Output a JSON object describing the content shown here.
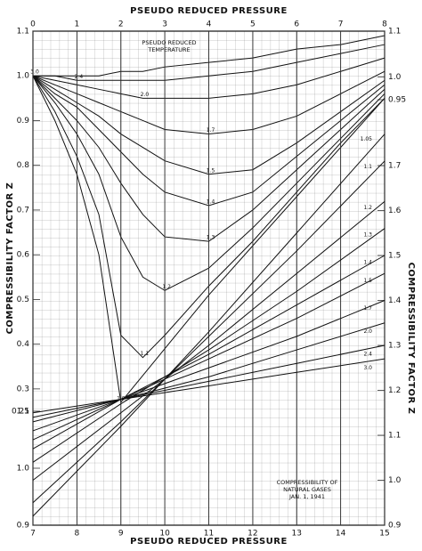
{
  "chart_data": [
    {
      "type": "line",
      "xlabel": "PSEUDO REDUCED PRESSURE",
      "ylabel": "COMPRESSIBILITY FACTOR Z",
      "annotations": [
        "PSEUDO REDUCED",
        "TEMPERATURE"
      ],
      "x": [
        0,
        0.5,
        1,
        1.5,
        2,
        2.5,
        3,
        4,
        5,
        6,
        7,
        8
      ],
      "xlim": [
        0,
        8
      ],
      "xticks": [
        0,
        1,
        2,
        3,
        4,
        5,
        6,
        7,
        8
      ],
      "ylim": [
        0.25,
        1.1
      ],
      "yticks": [
        0.25,
        0.3,
        0.4,
        0.5,
        0.6,
        0.7,
        0.8,
        0.9,
        {
          "value": 1,
          "label": "1.0"
        },
        1.1
      ],
      "y2lim": [
        0.95,
        1.1
      ],
      "y2ticks": [
        0.95,
        {
          "value": 1,
          "label": "1.0"
        },
        1.1
      ],
      "color": "#111111",
      "series": [
        {
          "name": "1.05",
          "values": [
            1,
            0.9,
            0.78,
            0.6,
            0.27,
            0.33,
            0.39,
            0.51,
            0.62,
            0.73,
            0.84,
            0.95
          ]
        },
        {
          "name": "1.1",
          "values": [
            1,
            0.92,
            0.82,
            0.69,
            0.42,
            0.37,
            0.42,
            0.53,
            0.63,
            0.74,
            0.85,
            0.95
          ]
        },
        {
          "name": "1.2",
          "values": [
            1,
            0.94,
            0.87,
            0.78,
            0.64,
            0.55,
            0.52,
            0.57,
            0.66,
            0.76,
            0.86,
            0.96
          ]
        },
        {
          "name": "1.3",
          "values": [
            1,
            0.95,
            0.9,
            0.84,
            0.76,
            0.69,
            0.64,
            0.63,
            0.7,
            0.79,
            0.88,
            0.97
          ]
        },
        {
          "name": "1.4",
          "values": [
            1,
            0.96,
            0.93,
            0.88,
            0.83,
            0.78,
            0.74,
            0.71,
            0.74,
            0.82,
            0.9,
            0.98
          ]
        },
        {
          "name": "1.5",
          "values": [
            1,
            0.97,
            0.94,
            0.91,
            0.87,
            0.84,
            0.81,
            0.78,
            0.79,
            0.85,
            0.92,
            0.99
          ]
        },
        {
          "name": "1.7",
          "values": [
            1,
            0.98,
            0.96,
            0.94,
            0.92,
            0.9,
            0.88,
            0.87,
            0.88,
            0.91,
            0.96,
            1.01
          ]
        },
        {
          "name": "2.0",
          "values": [
            1,
            0.99,
            0.98,
            0.97,
            0.96,
            0.95,
            0.95,
            0.95,
            0.96,
            0.98,
            1.01,
            1.04
          ]
        },
        {
          "name": "2.4",
          "values": [
            1,
            1,
            0.99,
            0.99,
            0.99,
            0.99,
            0.99,
            1,
            1.01,
            1.03,
            1.05,
            1.07
          ]
        },
        {
          "name": "3.0",
          "values": [
            1,
            1,
            1,
            1,
            1.01,
            1.01,
            1.02,
            1.03,
            1.04,
            1.06,
            1.07,
            1.09
          ]
        }
      ]
    },
    {
      "type": "line",
      "xlabel": "PSEUDO REDUCED PRESSURE",
      "ylabel": "COMPRESSIBILITY FACTOR Z",
      "annotations": [
        "COMPRESSIBILITY OF",
        "NATURAL GASES",
        "JAN. 1, 1941"
      ],
      "x": [
        7,
        9,
        11,
        13,
        15
      ],
      "xlim": [
        7,
        15
      ],
      "xticks": [
        7,
        8,
        9,
        10,
        11,
        12,
        13,
        14,
        15
      ],
      "ylim": [
        0.9,
        1.1
      ],
      "yticks": [
        0.9,
        {
          "value": 1,
          "label": "1.0"
        },
        1.1
      ],
      "y2lim": [
        0.9,
        1.7
      ],
      "y2ticks": [
        0.9,
        {
          "value": 1,
          "label": "1.0"
        },
        1.1,
        1.2,
        1.3,
        1.4,
        1.5,
        1.6,
        1.7
      ],
      "color": "#111111",
      "series": [
        {
          "name": "1.05",
          "axis": "y2",
          "values": [
            0.92,
            1.12,
            1.33,
            1.55,
            1.77
          ]
        },
        {
          "name": "1.1",
          "axis": "y2",
          "values": [
            0.95,
            1.13,
            1.32,
            1.51,
            1.71
          ]
        },
        {
          "name": "1.2",
          "axis": "y2",
          "values": [
            1.0,
            1.15,
            1.3,
            1.46,
            1.62
          ]
        },
        {
          "name": "1.3",
          "axis": "y2",
          "values": [
            1.04,
            1.17,
            1.29,
            1.42,
            1.56
          ]
        },
        {
          "name": "1.4",
          "axis": "y2",
          "values": [
            1.07,
            1.18,
            1.28,
            1.39,
            1.5
          ]
        },
        {
          "name": "1.5",
          "axis": "y2",
          "values": [
            1.09,
            1.18,
            1.27,
            1.36,
            1.46
          ]
        },
        {
          "name": "1.7",
          "axis": "y2",
          "values": [
            1.11,
            1.18,
            1.25,
            1.32,
            1.4
          ]
        },
        {
          "name": "2.0",
          "axis": "y2",
          "values": [
            1.13,
            1.18,
            1.23,
            1.29,
            1.35
          ]
        },
        {
          "name": "2.4",
          "axis": "y2",
          "values": [
            1.14,
            1.18,
            1.22,
            1.26,
            1.3
          ]
        },
        {
          "name": "3.0",
          "axis": "y2",
          "values": [
            1.15,
            1.18,
            1.21,
            1.24,
            1.27
          ]
        }
      ]
    }
  ]
}
